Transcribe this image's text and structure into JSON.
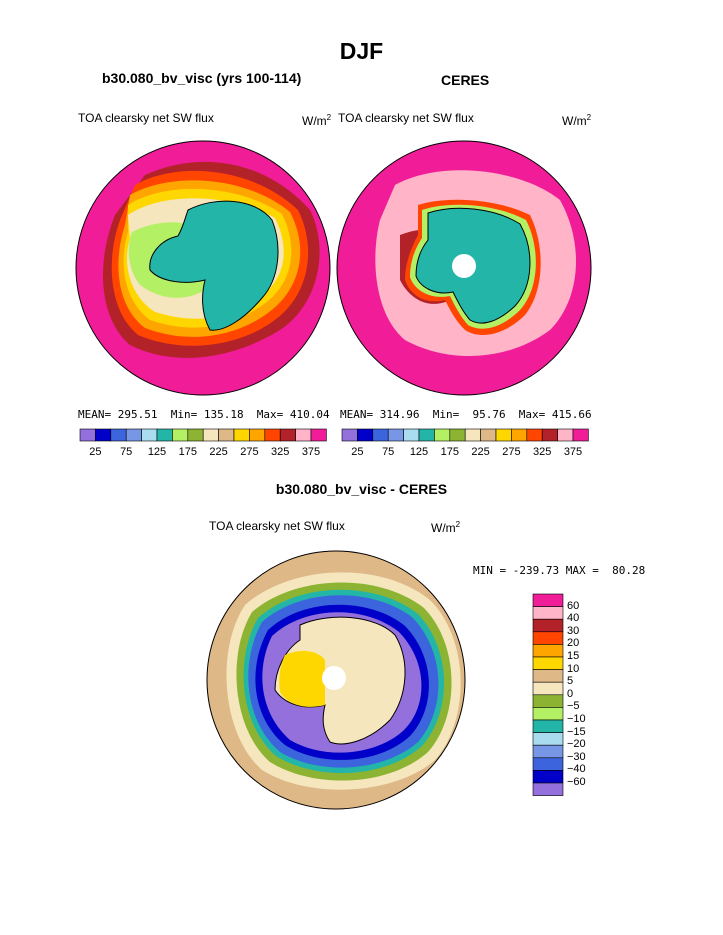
{
  "title": "DJF",
  "colors": {
    "land": "#22b5a8",
    "ocean_far": "#f01c98",
    "legend_abs": [
      "#9370db",
      "#0000c8",
      "#3c64dc",
      "#7896e6",
      "#aadcf0",
      "#22b5a8",
      "#b4f064",
      "#8cb432",
      "#f5e6be",
      "#deb887",
      "#ffd700",
      "#ffa500",
      "#ff4500",
      "#b22228",
      "#ffb4c8",
      "#f01c98"
    ],
    "legend_diff": [
      "#f01c98",
      "#ffb4c8",
      "#b22228",
      "#ff4500",
      "#ffa500",
      "#ffd700",
      "#deb887",
      "#f5e6be",
      "#8cb432",
      "#b4f064",
      "#22b5a8",
      "#aadcf0",
      "#7896e6",
      "#3c64dc",
      "#0000c8",
      "#9370db"
    ]
  },
  "panel_left": {
    "title": "b30.080_bv_visc (yrs 100-114)",
    "field": "TOA clearsky net SW flux",
    "units_base": "W/m",
    "units_exp": "2",
    "stats": "MEAN= 295.51  Min= 135.18  Max= 410.04",
    "ticks": [
      "25",
      "75",
      "125",
      "175",
      "225",
      "275",
      "325",
      "375"
    ]
  },
  "panel_right": {
    "title": "CERES",
    "field": "TOA clearsky net SW flux",
    "units_base": "W/m",
    "units_exp": "2",
    "stats": "MEAN= 314.96  Min=  95.76  Max= 415.66",
    "ticks": [
      "25",
      "75",
      "125",
      "175",
      "225",
      "275",
      "325",
      "375"
    ]
  },
  "panel_diff": {
    "title": "b30.080_bv_visc - CERES",
    "field": "TOA clearsky net SW flux",
    "units_base": "W/m",
    "units_exp": "2",
    "stats": "MIN = -239.73 MAX =  80.28",
    "ticks": [
      "60",
      "40",
      "30",
      "20",
      "15",
      "10",
      "5",
      "0",
      "−5",
      "−10",
      "−15",
      "−20",
      "−30",
      "−40",
      "−60"
    ]
  }
}
